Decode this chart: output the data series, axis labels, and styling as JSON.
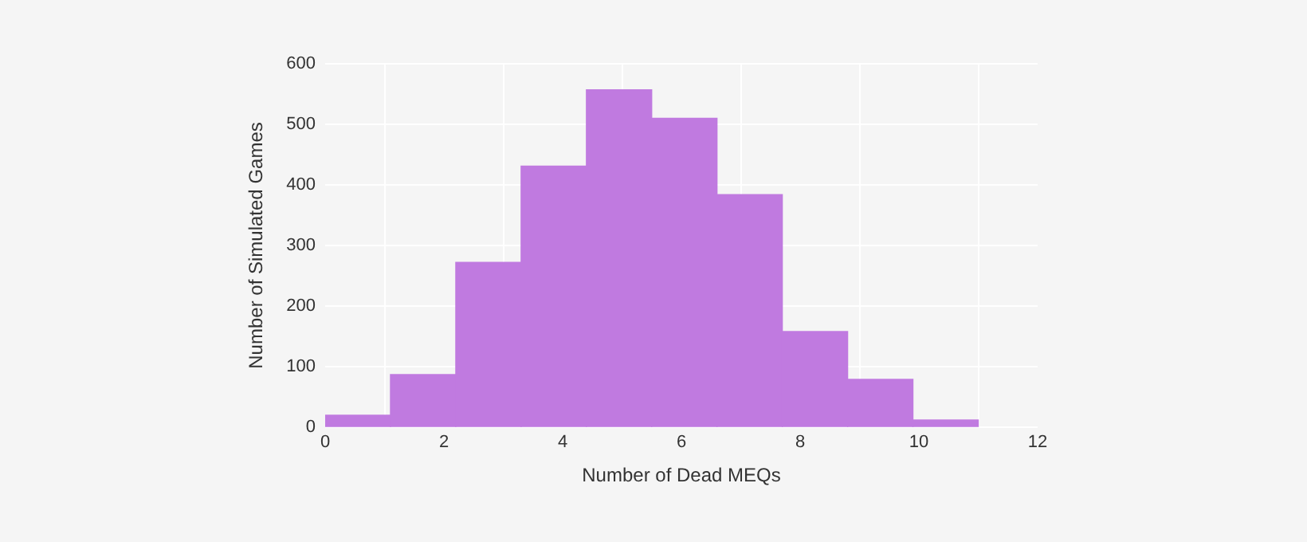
{
  "chart_data": {
    "type": "histogram",
    "xlabel": "Number of Dead MEQs",
    "ylabel": "Number of Simulated Games",
    "bins": [
      0,
      1.1,
      2.2,
      3.3,
      4.4,
      5.5,
      6.6,
      7.7,
      8.8,
      9.9,
      11
    ],
    "values": [
      20,
      87,
      272,
      431,
      557,
      510,
      384,
      158,
      79,
      12
    ],
    "color": "#c07ae0",
    "xlim": [
      0,
      12
    ],
    "xticks": [
      0,
      2,
      4,
      6,
      8,
      10,
      12
    ],
    "ylim": [
      0,
      600
    ],
    "yticks": [
      0,
      100,
      200,
      300,
      400,
      500,
      600
    ],
    "grid": true,
    "legend": false
  }
}
